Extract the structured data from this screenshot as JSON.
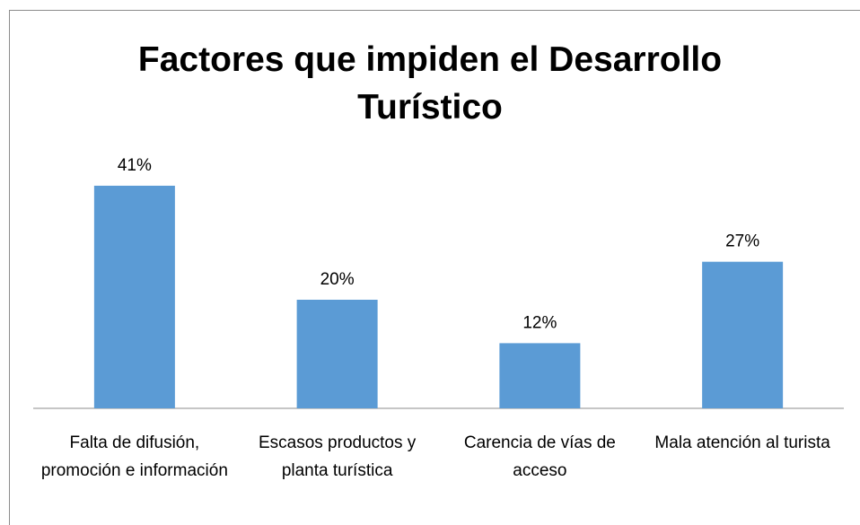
{
  "chart_data": {
    "type": "bar",
    "title": "Factores que impiden el Desarrollo Turístico",
    "categories": [
      "Falta de difusión, promoción e información",
      "Escasos productos y planta turística",
      "Carencia de vías de acceso",
      "Mala atención al turista"
    ],
    "values": [
      41,
      20,
      12,
      27
    ],
    "value_labels": [
      "41%",
      "20%",
      "12%",
      "27%"
    ],
    "color": "#5b9bd5"
  }
}
